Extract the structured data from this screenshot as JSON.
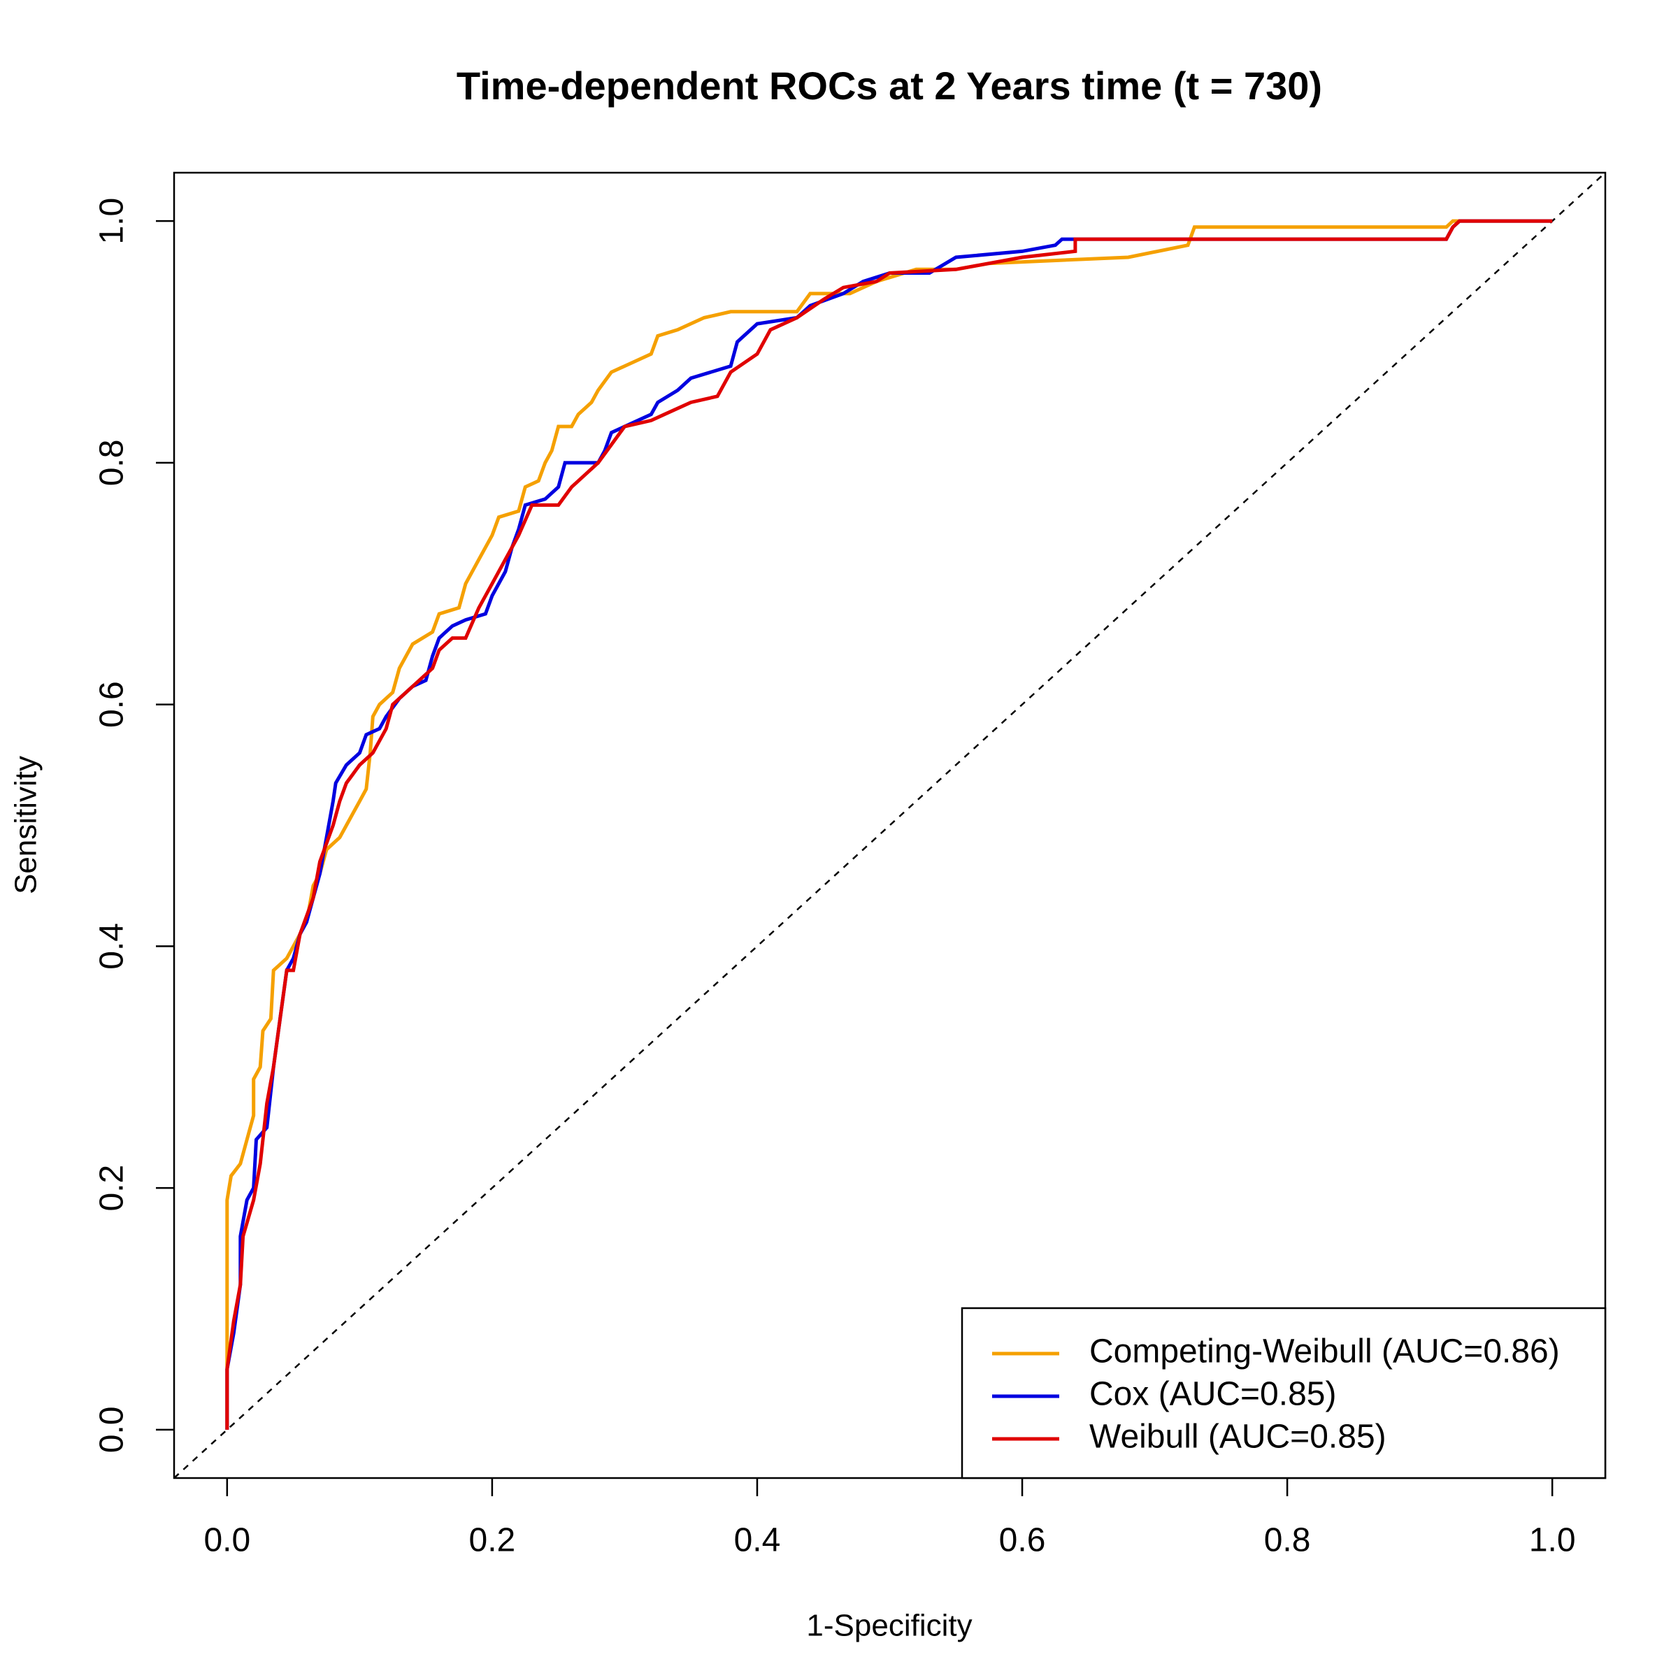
{
  "chart_data": {
    "type": "line",
    "title": "Time-dependent ROCs at 2 Years time (t = 730)",
    "x_label": "1-Specificity",
    "y_label": "Sensitivity",
    "xlim": [
      -0.04,
      1.04
    ],
    "ylim": [
      -0.04,
      1.04
    ],
    "xticks": [
      {
        "value": 0,
        "label": "0.0"
      },
      0.2,
      0.4,
      0.6,
      0.8,
      {
        "value": 1,
        "label": "1.0"
      }
    ],
    "yticks": [
      {
        "value": 0,
        "label": "0.0"
      },
      0.2,
      0.4,
      0.6,
      0.8,
      {
        "value": 1,
        "label": "1.0"
      }
    ],
    "legend": "bottom-right",
    "series": [
      {
        "name": "Competing-Weibull (AUC=0.86)",
        "color": "#f5a000",
        "x": [
          0,
          0,
          0,
          0.003,
          0.01,
          0.015,
          0.02,
          0.02,
          0.025,
          0.027,
          0.033,
          0.035,
          0.045,
          0.05,
          0.06,
          0.065,
          0.07,
          0.075,
          0.085,
          0.09,
          0.1,
          0.105,
          0.108,
          0.11,
          0.115,
          0.125,
          0.13,
          0.14,
          0.155,
          0.16,
          0.175,
          0.18,
          0.19,
          0.2,
          0.205,
          0.22,
          0.225,
          0.235,
          0.24,
          0.245,
          0.25,
          0.26,
          0.265,
          0.275,
          0.28,
          0.29,
          0.3,
          0.32,
          0.325,
          0.34,
          0.36,
          0.38,
          0.43,
          0.44,
          0.47,
          0.49,
          0.52,
          0.55,
          0.575,
          0.68,
          0.725,
          0.73,
          0.92,
          0.925,
          1
        ],
        "values": [
          0,
          0.06,
          0.19,
          0.21,
          0.22,
          0.24,
          0.26,
          0.29,
          0.3,
          0.33,
          0.34,
          0.38,
          0.39,
          0.4,
          0.42,
          0.45,
          0.46,
          0.48,
          0.49,
          0.5,
          0.52,
          0.53,
          0.56,
          0.59,
          0.6,
          0.61,
          0.63,
          0.65,
          0.66,
          0.675,
          0.68,
          0.7,
          0.72,
          0.74,
          0.755,
          0.76,
          0.78,
          0.785,
          0.8,
          0.81,
          0.83,
          0.83,
          0.84,
          0.85,
          0.86,
          0.875,
          0.88,
          0.89,
          0.905,
          0.91,
          0.92,
          0.925,
          0.925,
          0.94,
          0.94,
          0.95,
          0.96,
          0.96,
          0.965,
          0.97,
          0.98,
          0.995,
          0.995,
          1,
          1
        ]
      },
      {
        "name": "Cox (AUC=0.85)",
        "color": "#0000e0",
        "x": [
          0,
          0,
          0.005,
          0.01,
          0.01,
          0.015,
          0.02,
          0.022,
          0.03,
          0.035,
          0.04,
          0.045,
          0.05,
          0.055,
          0.06,
          0.065,
          0.07,
          0.075,
          0.08,
          0.082,
          0.09,
          0.1,
          0.105,
          0.115,
          0.12,
          0.13,
          0.14,
          0.15,
          0.155,
          0.16,
          0.17,
          0.18,
          0.195,
          0.2,
          0.21,
          0.215,
          0.22,
          0.225,
          0.24,
          0.25,
          0.255,
          0.28,
          0.285,
          0.29,
          0.3,
          0.32,
          0.325,
          0.34,
          0.35,
          0.38,
          0.385,
          0.4,
          0.43,
          0.44,
          0.465,
          0.48,
          0.5,
          0.53,
          0.55,
          0.6,
          0.625,
          0.63,
          0.74,
          0.92,
          0.925,
          0.93,
          1
        ],
        "values": [
          0,
          0.05,
          0.08,
          0.12,
          0.16,
          0.19,
          0.2,
          0.24,
          0.25,
          0.3,
          0.34,
          0.38,
          0.39,
          0.41,
          0.42,
          0.44,
          0.46,
          0.49,
          0.52,
          0.535,
          0.55,
          0.56,
          0.575,
          0.58,
          0.59,
          0.605,
          0.615,
          0.62,
          0.64,
          0.655,
          0.665,
          0.67,
          0.675,
          0.69,
          0.71,
          0.73,
          0.745,
          0.765,
          0.77,
          0.78,
          0.8,
          0.8,
          0.81,
          0.825,
          0.83,
          0.84,
          0.85,
          0.86,
          0.87,
          0.88,
          0.9,
          0.915,
          0.92,
          0.93,
          0.94,
          0.95,
          0.957,
          0.957,
          0.97,
          0.975,
          0.98,
          0.985,
          0.985,
          0.985,
          0.995,
          1,
          1
        ]
      },
      {
        "name": "Weibull (AUC=0.85)",
        "color": "#e00000",
        "x": [
          0,
          0,
          0.005,
          0.01,
          0.012,
          0.02,
          0.025,
          0.03,
          0.035,
          0.04,
          0.045,
          0.05,
          0.055,
          0.065,
          0.07,
          0.08,
          0.085,
          0.09,
          0.1,
          0.11,
          0.12,
          0.125,
          0.14,
          0.155,
          0.16,
          0.17,
          0.18,
          0.19,
          0.2,
          0.21,
          0.22,
          0.23,
          0.25,
          0.26,
          0.27,
          0.28,
          0.29,
          0.3,
          0.32,
          0.33,
          0.35,
          0.37,
          0.38,
          0.4,
          0.41,
          0.43,
          0.45,
          0.465,
          0.49,
          0.5,
          0.55,
          0.6,
          0.64,
          0.64,
          0.92,
          0.925,
          0.93,
          1
        ],
        "values": [
          0,
          0.05,
          0.09,
          0.12,
          0.16,
          0.19,
          0.22,
          0.27,
          0.3,
          0.34,
          0.38,
          0.38,
          0.41,
          0.44,
          0.47,
          0.5,
          0.52,
          0.535,
          0.55,
          0.56,
          0.58,
          0.6,
          0.615,
          0.63,
          0.645,
          0.655,
          0.655,
          0.68,
          0.7,
          0.72,
          0.74,
          0.765,
          0.765,
          0.78,
          0.79,
          0.8,
          0.815,
          0.83,
          0.835,
          0.84,
          0.85,
          0.855,
          0.875,
          0.89,
          0.91,
          0.92,
          0.935,
          0.945,
          0.95,
          0.957,
          0.96,
          0.97,
          0.975,
          0.985,
          0.985,
          0.995,
          1,
          1
        ]
      }
    ]
  }
}
